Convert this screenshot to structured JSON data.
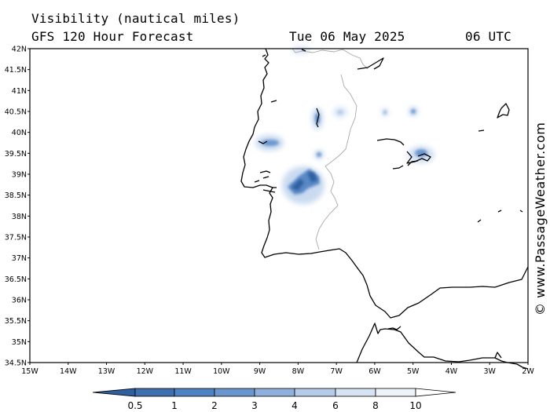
{
  "header": {
    "title": "Visibility (nautical miles)",
    "subtitle": "GFS 120 Hour Forecast",
    "date": "Tue 06 May 2025",
    "time": "06 UTC"
  },
  "credit": "© www.PassageWeather.com",
  "map": {
    "lat_range": [
      34.5,
      42
    ],
    "lon_range": [
      -15,
      -2
    ],
    "lat_labels": [
      "42N",
      "41.5N",
      "41N",
      "40.5N",
      "40N",
      "39.5N",
      "39N",
      "38.5N",
      "38N",
      "37.5N",
      "37N",
      "36.5N",
      "36N",
      "35.5N",
      "35N",
      "34.5N"
    ],
    "lon_labels": [
      "15W",
      "14W",
      "13W",
      "12W",
      "11W",
      "10W",
      "9W",
      "8W",
      "7W",
      "6W",
      "5W",
      "4W",
      "3W",
      "2W"
    ]
  },
  "legend": {
    "labels": [
      "0.5",
      "1",
      "2",
      "3",
      "4",
      "6",
      "8",
      "10"
    ],
    "colors": [
      "#3f6faf",
      "#4f82c2",
      "#6a96cf",
      "#8fb0dc",
      "#b5cbe8",
      "#d6e3f3",
      "#eef3fa",
      "#ffffff"
    ]
  }
}
